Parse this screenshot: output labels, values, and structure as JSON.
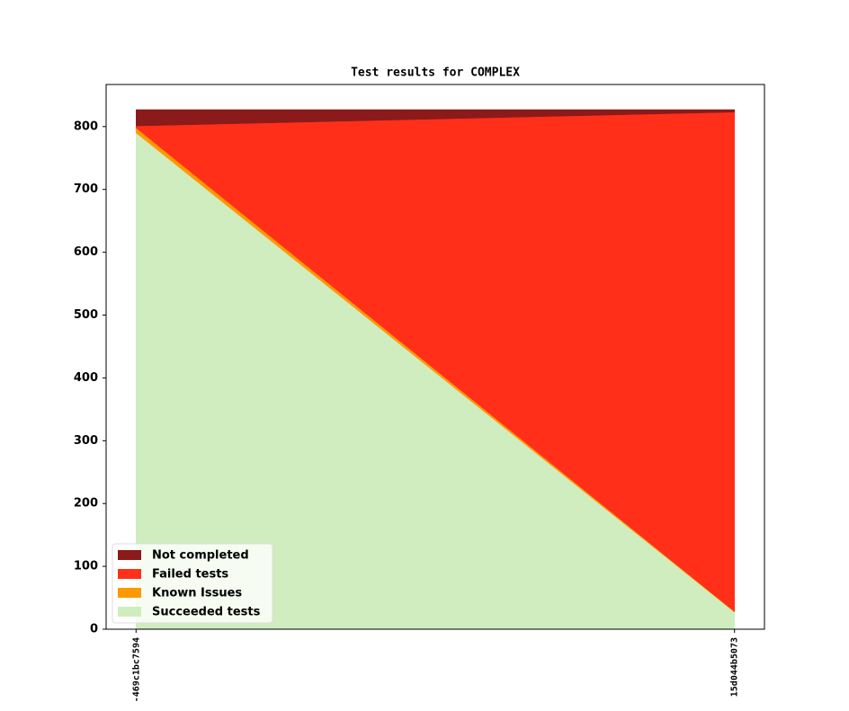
{
  "chart_data": {
    "type": "stacked_area",
    "title": "Test results for COMPLEX",
    "categories": [
      "-469c1bc7594",
      "15d044b5073"
    ],
    "series": [
      {
        "name": "Not completed",
        "color": "#8b1a1a",
        "values": [
          26,
          4
        ]
      },
      {
        "name": "Failed tests",
        "color": "#ff2f1a",
        "values": [
          3,
          795
        ]
      },
      {
        "name": "Known Issues",
        "color": "#ff9900",
        "values": [
          8,
          1
        ]
      },
      {
        "name": "Succeeded tests",
        "color": "#cfedbf",
        "values": [
          790,
          27
        ]
      }
    ],
    "ylim": [
      0,
      867
    ],
    "yticks": [
      0,
      100,
      200,
      300,
      400,
      500,
      600,
      700,
      800
    ],
    "legend": "lower left"
  }
}
